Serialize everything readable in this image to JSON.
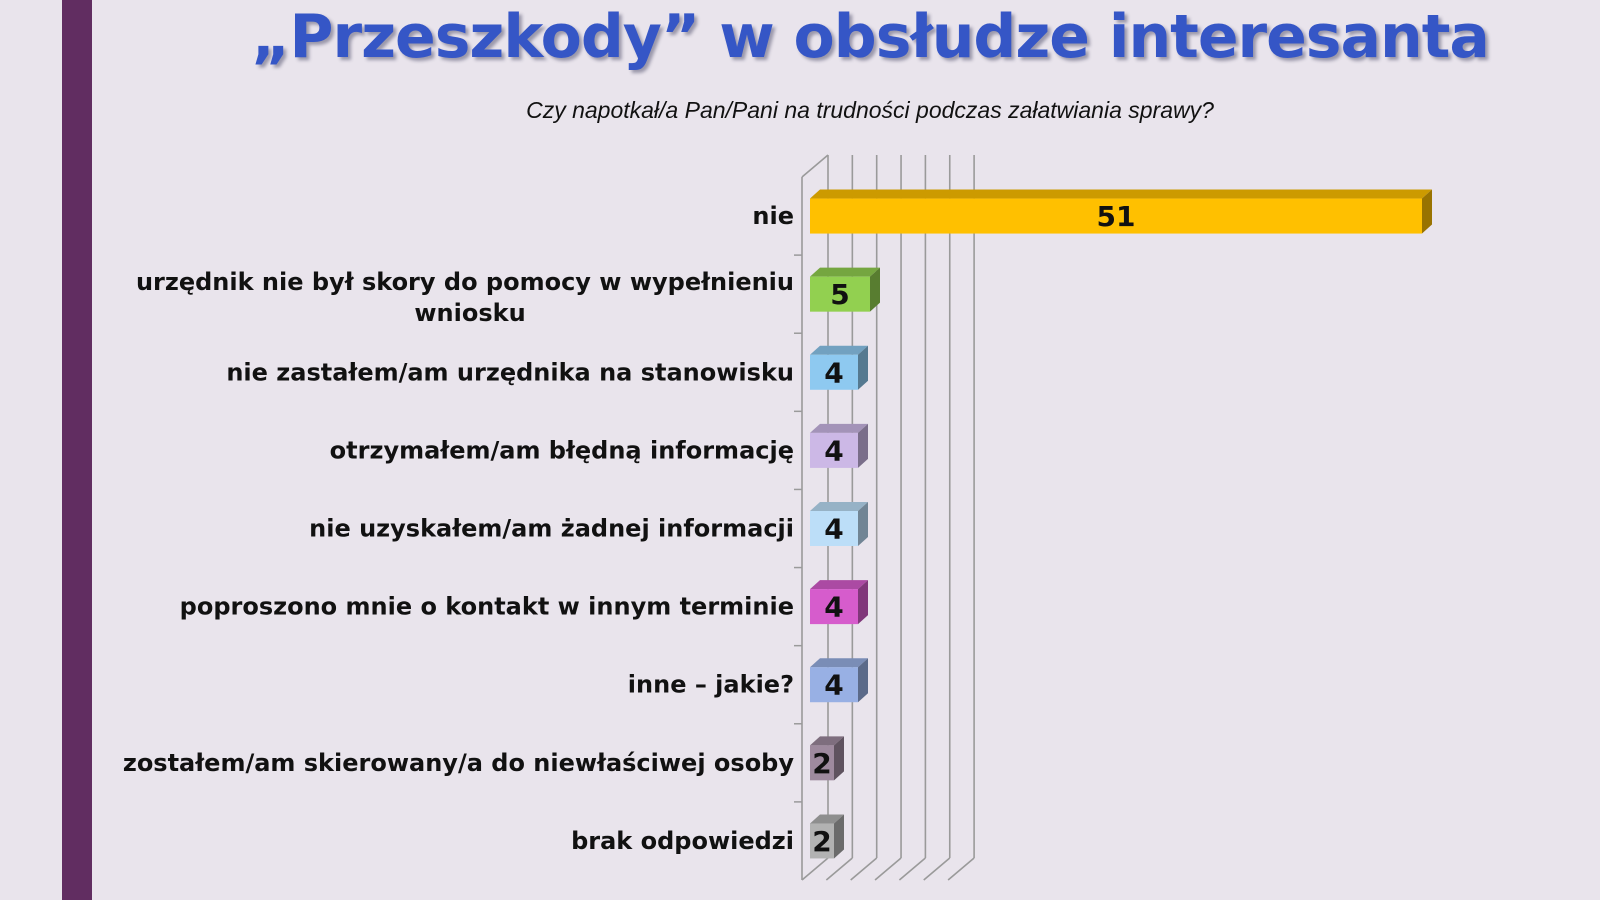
{
  "title": "„Przeszkody” w obsłudze interesanta",
  "subtitle": "Czy napotkał/a Pan/Pani na trudności podczas załatwiania sprawy?",
  "chart_data": {
    "type": "bar",
    "orientation": "horizontal",
    "style": "3d",
    "grid": true,
    "xlim": [
      0,
      60
    ],
    "categories": [
      [
        "nie"
      ],
      [
        "urzędnik nie był skory do pomocy w wypełnieniu",
        "wniosku"
      ],
      [
        "nie zastałem/am urzędnika na stanowisku"
      ],
      [
        "otrzymałem/am błędną informację"
      ],
      [
        "nie uzyskałem/am żadnej informacji"
      ],
      [
        "poproszono mnie o kontakt w innym terminie"
      ],
      [
        "inne – jakie?"
      ],
      [
        "zostałem/am skierowany/a do niewłaściwej osoby"
      ],
      [
        "brak odpowiedzi"
      ]
    ],
    "values": [
      51,
      5,
      4,
      4,
      4,
      4,
      4,
      2,
      2
    ],
    "colors": [
      "#ffc000",
      "#92d050",
      "#8ec9f0",
      "#ccb8e6",
      "#bcdef8",
      "#d65ccc",
      "#98b0e4",
      "#9e8a9e",
      "#b2b2b2"
    ]
  }
}
